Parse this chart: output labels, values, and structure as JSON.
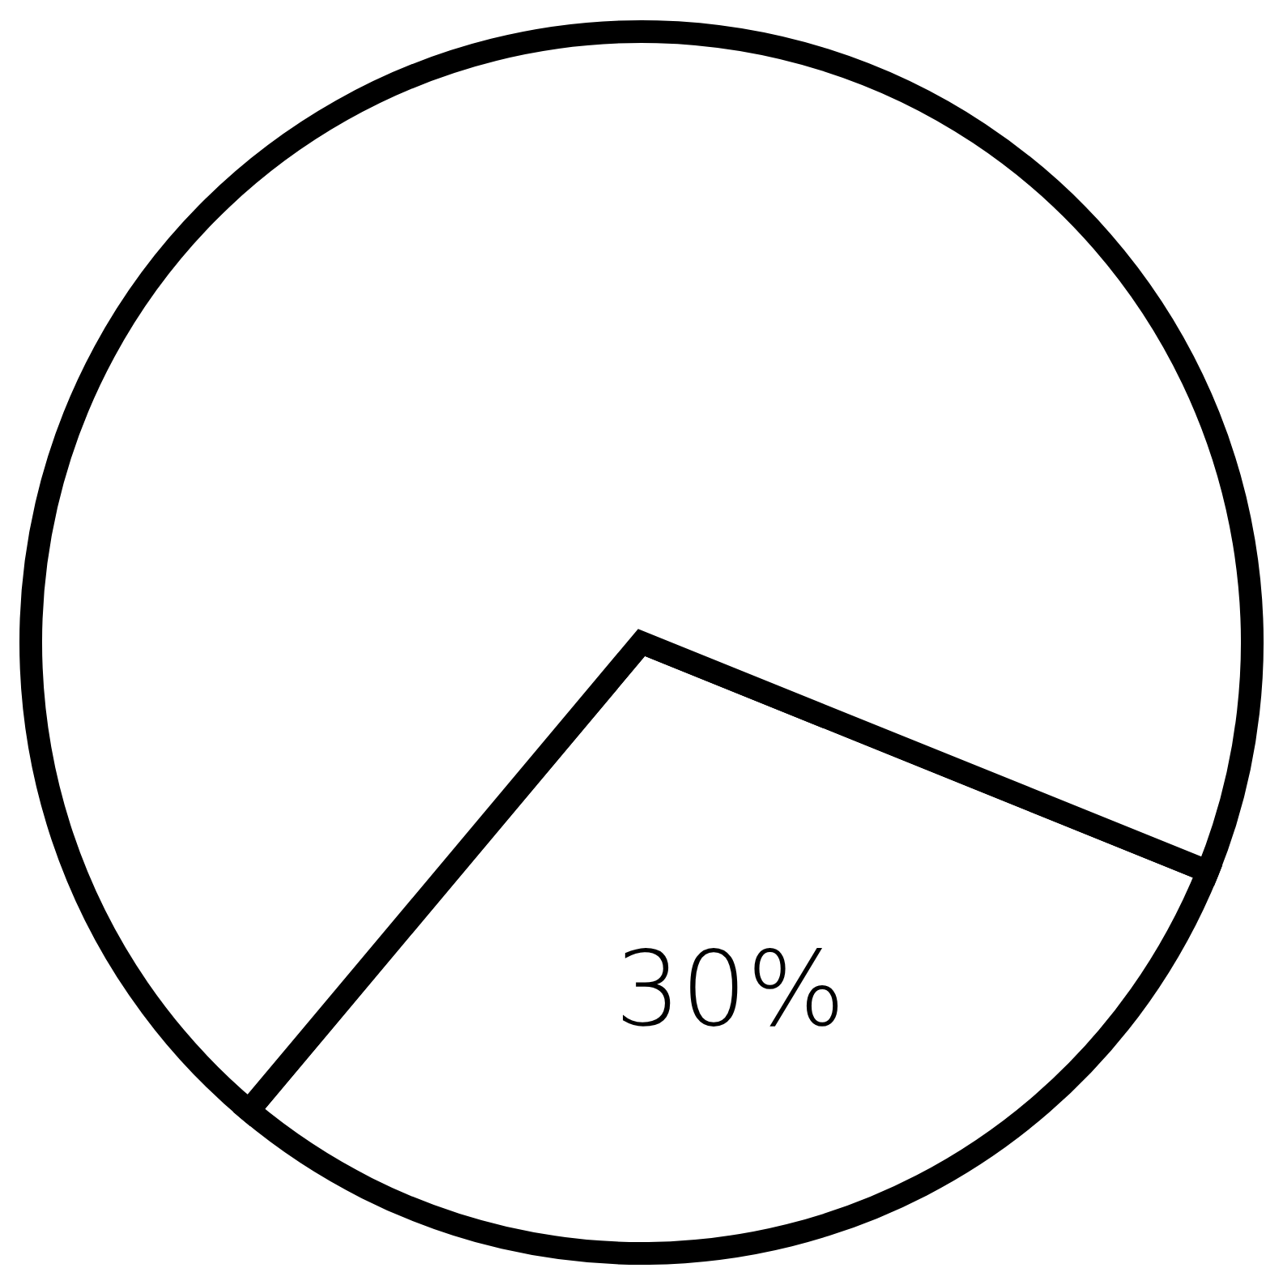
{
  "chart_data": {
    "type": "pie",
    "categories": [
      null,
      null
    ],
    "values": [
      30,
      70
    ],
    "colors": [
      "#ffffff",
      "#ffffff"
    ],
    "value_labels": [
      "30%",
      null
    ],
    "legend": false
  }
}
